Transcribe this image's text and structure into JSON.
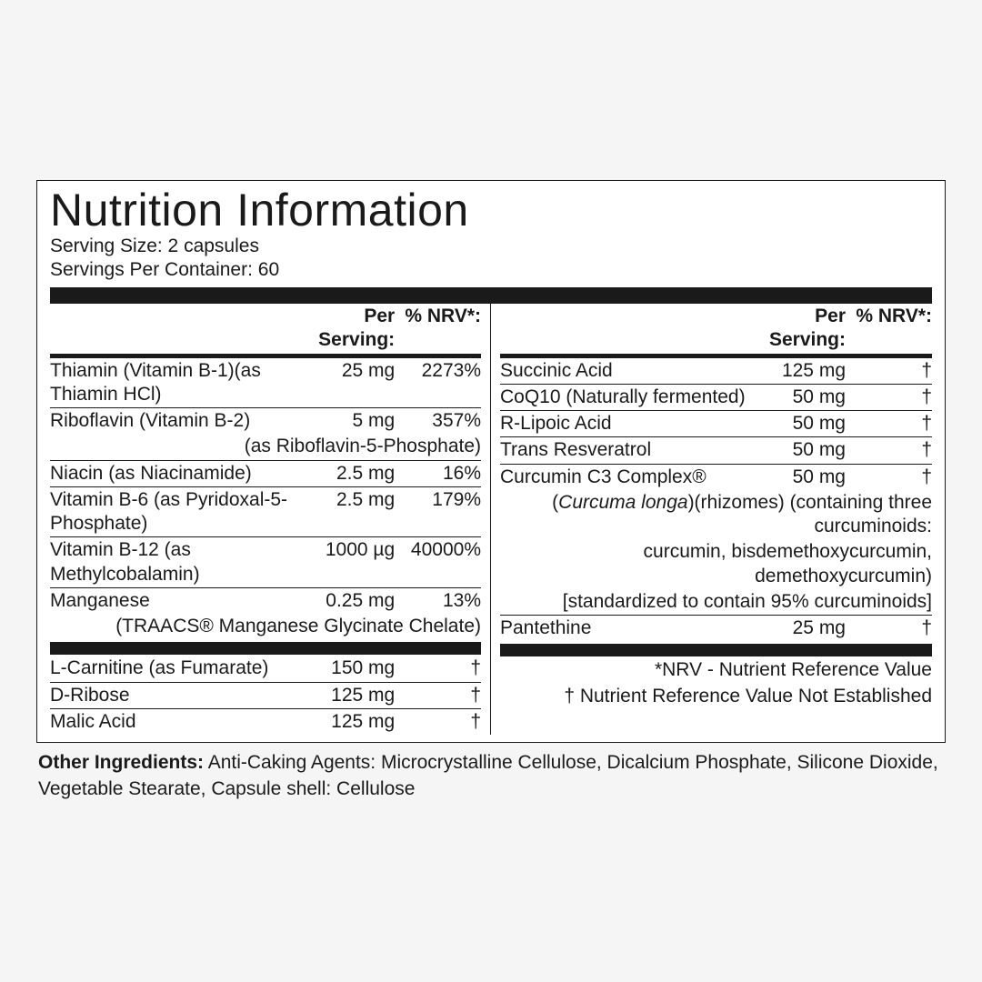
{
  "title": "Nutrition Information",
  "serving_size_label": "Serving Size: 2 capsules",
  "servings_per_label": "Servings Per Container: 60",
  "header": {
    "per_serving": "Per Serving:",
    "nrv": "% NRV*:"
  },
  "left_rows": [
    {
      "name": "Thiamin (Vitamin B-1)(as Thiamin HCl)",
      "amt": "25 mg",
      "nrv": "2273%",
      "rule": true
    },
    {
      "name": "Riboflavin (Vitamin B-2)",
      "amt": "5 mg",
      "nrv": "357%",
      "rule": false
    },
    {
      "name": "(as Riboflavin-5-Phosphate)",
      "sub": true,
      "rule": true
    },
    {
      "name": "Niacin (as Niacinamide)",
      "amt": "2.5 mg",
      "nrv": "16%",
      "rule": true
    },
    {
      "name": "Vitamin B-6 (as Pyridoxal-5-Phosphate)",
      "amt": "2.5 mg",
      "nrv": "179%",
      "rule": true
    },
    {
      "name": "Vitamin B-12 (as Methylcobalamin)",
      "amt": "1000 µg",
      "nrv": "40000%",
      "rule": true
    },
    {
      "name": "Manganese",
      "amt": "0.25 mg",
      "nrv": "13%",
      "rule": false
    },
    {
      "name": "(TRAACS® Manganese Glycinate Chelate)",
      "sub": true,
      "rule": false
    },
    {
      "sep": true
    },
    {
      "name": "L-Carnitine (as Fumarate)",
      "amt": "150 mg",
      "nrv": "†",
      "rule": true
    },
    {
      "name": "D-Ribose",
      "amt": "125 mg",
      "nrv": "†",
      "rule": true
    },
    {
      "name": "Malic Acid",
      "amt": "125 mg",
      "nrv": "†",
      "rule": false
    }
  ],
  "right_rows": [
    {
      "name": "Succinic Acid",
      "amt": "125 mg",
      "nrv": "†",
      "rule": true
    },
    {
      "name": "CoQ10 (Naturally fermented)",
      "amt": "50 mg",
      "nrv": "†",
      "rule": true
    },
    {
      "name": "R-Lipoic Acid",
      "amt": "50 mg",
      "nrv": "†",
      "rule": true
    },
    {
      "name": "Trans Resveratrol",
      "amt": "50 mg",
      "nrv": "†",
      "rule": true
    },
    {
      "name": "Curcumin C3 Complex®",
      "amt": "50 mg",
      "nrv": "†",
      "rule": false
    },
    {
      "sub": true,
      "html": "(<span class=\"ital\">Curcuma longa</span>)(rhizomes) (containing three curcuminoids:",
      "rule": false
    },
    {
      "sub": true,
      "name": "curcumin, bisdemethoxycurcumin, demethoxycurcumin)",
      "rule": false
    },
    {
      "sub": true,
      "name": "[standardized to contain 95% curcuminoids]",
      "rule": true
    },
    {
      "name": "Pantethine",
      "amt": "25 mg",
      "nrv": "†",
      "rule": false
    },
    {
      "sep": true
    },
    {
      "note": "*NRV - Nutrient Reference Value"
    },
    {
      "note": "† Nutrient Reference Value Not Established"
    }
  ],
  "other_label": "Other Ingredients:",
  "other_text": " Anti-Caking Agents: Microcrystalline Cellulose, Dicalcium Phosphate, Silicone Dioxide, Vegetable Stearate, Capsule shell: Cellulose"
}
